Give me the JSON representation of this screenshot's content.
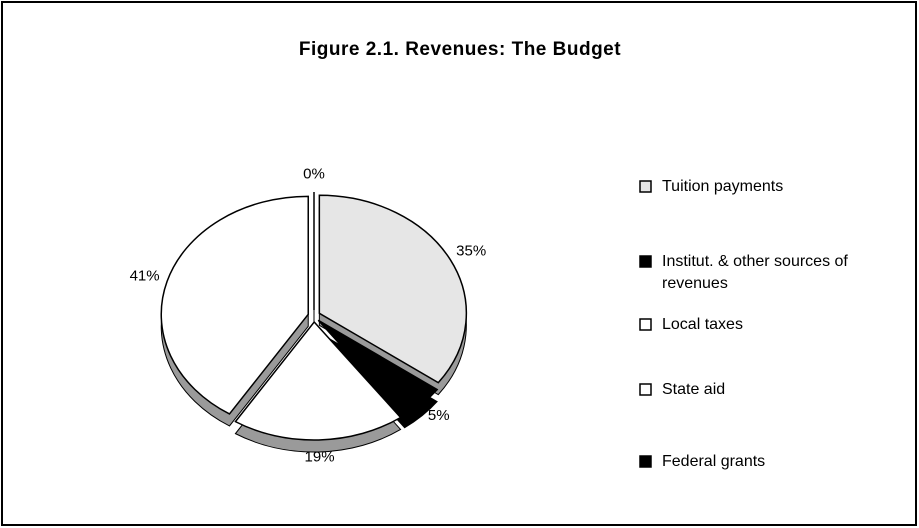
{
  "chart_data": {
    "type": "pie",
    "title": "Figure 2.1. Revenues: The Budget",
    "categories": [
      "Tuition payments",
      "Institut. & other sources of revenues",
      "Local taxes",
      "State aid",
      "Federal grants"
    ],
    "values": [
      35,
      5,
      19,
      41,
      0
    ],
    "value_labels": [
      "35%",
      "5%",
      "19%",
      "41%",
      "0%"
    ],
    "colors": [
      "#e6e6e6",
      "#000000",
      "#ffffff",
      "#ffffff",
      "#000000"
    ],
    "legend": "right"
  }
}
